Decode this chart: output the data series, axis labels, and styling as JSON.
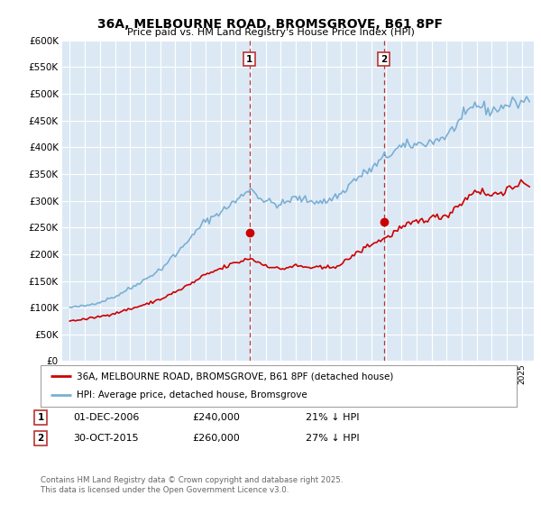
{
  "title": "36A, MELBOURNE ROAD, BROMSGROVE, B61 8PF",
  "subtitle": "Price paid vs. HM Land Registry's House Price Index (HPI)",
  "ylim": [
    0,
    600000
  ],
  "yticks": [
    0,
    50000,
    100000,
    150000,
    200000,
    250000,
    300000,
    350000,
    400000,
    450000,
    500000,
    550000,
    600000
  ],
  "background_color": "#ffffff",
  "plot_bg_color": "#dce9f5",
  "grid_color": "#ffffff",
  "red_color": "#cc0000",
  "blue_color": "#7bafd4",
  "legend_label_red": "36A, MELBOURNE ROAD, BROMSGROVE, B61 8PF (detached house)",
  "legend_label_blue": "HPI: Average price, detached house, Bromsgrove",
  "transaction1_date": "01-DEC-2006",
  "transaction1_price": "£240,000",
  "transaction1_pct": "21% ↓ HPI",
  "transaction2_date": "30-OCT-2015",
  "transaction2_price": "£260,000",
  "transaction2_pct": "27% ↓ HPI",
  "footer": "Contains HM Land Registry data © Crown copyright and database right 2025.\nThis data is licensed under the Open Government Licence v3.0.",
  "marker1_x": 2006.917,
  "marker1_y": 240000,
  "marker2_x": 2015.833,
  "marker2_y": 260000,
  "vline1_x": 2006.917,
  "vline2_x": 2015.833,
  "xmin": 1994.5,
  "xmax": 2025.8
}
